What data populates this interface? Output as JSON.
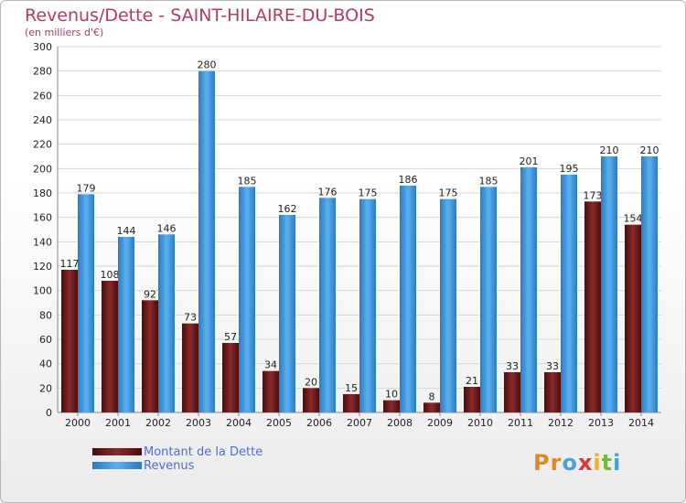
{
  "title": "Revenus/Dette - SAINT-HILAIRE-DU-BOIS",
  "subtitle": "(en milliers d'€)",
  "legend": {
    "dette": "Montant de la Dette",
    "revenus": "Revenus"
  },
  "logo": {
    "text": "Proxiti",
    "letters": [
      "Pr",
      "o",
      "x",
      "i",
      "t",
      "i"
    ]
  },
  "colors": {
    "dette": "#6b1a1a",
    "revenus": "#3b8fd6",
    "title": "#b03a6b"
  },
  "chart_data": {
    "type": "bar",
    "title": "Revenus/Dette - SAINT-HILAIRE-DU-BOIS",
    "subtitle": "(en milliers d'€)",
    "categories": [
      "2000",
      "2001",
      "2002",
      "2003",
      "2004",
      "2005",
      "2006",
      "2007",
      "2008",
      "2009",
      "2010",
      "2011",
      "2012",
      "2013",
      "2014"
    ],
    "series": [
      {
        "name": "Montant de la Dette",
        "values": [
          117,
          108,
          92,
          73,
          57,
          34,
          20,
          15,
          10,
          8,
          21,
          33,
          33,
          173,
          154
        ]
      },
      {
        "name": "Revenus",
        "values": [
          179,
          144,
          146,
          280,
          185,
          162,
          176,
          175,
          186,
          175,
          185,
          201,
          195,
          210,
          210
        ]
      }
    ],
    "ylim": [
      0,
      300
    ],
    "yticks": [
      0,
      20,
      40,
      60,
      80,
      100,
      120,
      140,
      160,
      180,
      200,
      220,
      240,
      260,
      280,
      300
    ],
    "grid": true,
    "legend_position": "bottom-left"
  }
}
